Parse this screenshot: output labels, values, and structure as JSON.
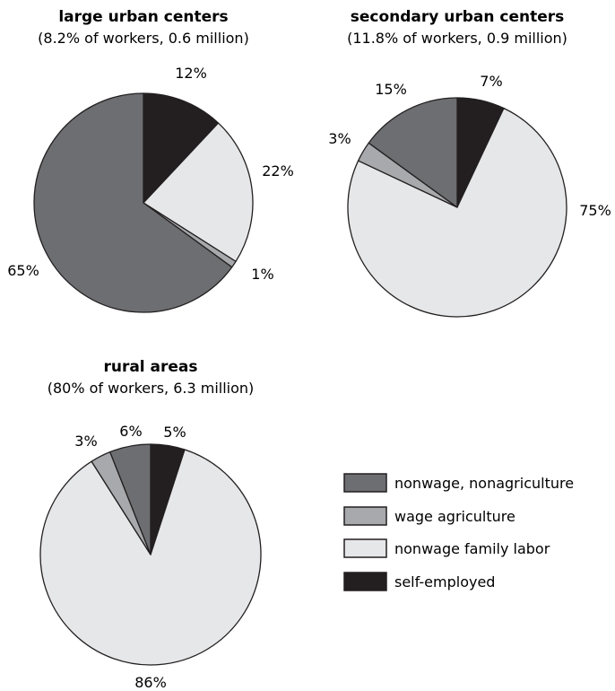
{
  "chart_data": [
    {
      "type": "pie",
      "title": "large urban centers",
      "subtitle": "(8.2% of workers, 0.6 million)",
      "slices": [
        {
          "name": "self-employed",
          "value": 12,
          "label": "12%"
        },
        {
          "name": "nonwage family labor",
          "value": 22,
          "label": "22%"
        },
        {
          "name": "wage agriculture",
          "value": 1,
          "label": "1%"
        },
        {
          "name": "nonwage, nonagriculture",
          "value": 65,
          "label": "65%"
        }
      ]
    },
    {
      "type": "pie",
      "title": "secondary urban centers",
      "subtitle": "(11.8% of workers, 0.9 million)",
      "slices": [
        {
          "name": "self-employed",
          "value": 7,
          "label": "7%"
        },
        {
          "name": "nonwage family labor",
          "value": 75,
          "label": "75%"
        },
        {
          "name": "wage agriculture",
          "value": 3,
          "label": "3%"
        },
        {
          "name": "nonwage, nonagriculture",
          "value": 15,
          "label": "15%"
        }
      ]
    },
    {
      "type": "pie",
      "title": "rural areas",
      "subtitle": "(80% of workers, 6.3 million)",
      "slices": [
        {
          "name": "self-employed",
          "value": 5,
          "label": "5%"
        },
        {
          "name": "nonwage family labor",
          "value": 86,
          "label": "86%"
        },
        {
          "name": "wage agriculture",
          "value": 3,
          "label": "3%"
        },
        {
          "name": "nonwage, nonagriculture",
          "value": 6,
          "label": "6%"
        }
      ]
    }
  ],
  "legend": {
    "placement": "bottom-right",
    "items": [
      {
        "label": "nonwage, nonagriculture",
        "color": "#6d6e71"
      },
      {
        "label": "wage agriculture",
        "color": "#a7a9ac"
      },
      {
        "label": "nonwage family labor",
        "color": "#e6e7e8"
      },
      {
        "label": "self-employed",
        "color": "#231f20"
      }
    ]
  },
  "colors": {
    "self-employed": "#231f20",
    "nonwage family labor": "#e6e7e8",
    "wage agriculture": "#a7a9ac",
    "nonwage, nonagriculture": "#6d6e71",
    "outline": "#231f20"
  }
}
